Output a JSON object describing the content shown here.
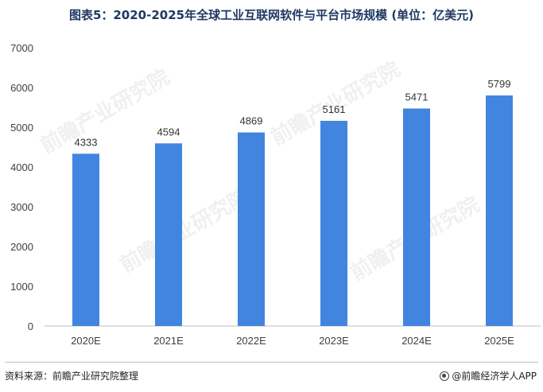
{
  "title": "图表5：2020-2025年全球工业互联网软件与平台市场规模 (单位：亿美元)",
  "watermark": "前瞻产业研究院",
  "source": "资料来源：前瞻产业研究院整理",
  "brand": "@前瞻经济学人APP",
  "colors": {
    "bar": "#4285e0",
    "title": "#1f3864",
    "axis": "#bfbfbf"
  },
  "chart_data": {
    "type": "bar",
    "categories": [
      "2020E",
      "2021E",
      "2022E",
      "2023E",
      "2024E",
      "2025E"
    ],
    "values": [
      4333,
      4594,
      4869,
      5161,
      5471,
      5799
    ],
    "ylim": [
      0,
      7000
    ],
    "yticks": [
      0,
      1000,
      2000,
      3000,
      4000,
      5000,
      6000,
      7000
    ],
    "grid": false,
    "data_labels": true
  }
}
